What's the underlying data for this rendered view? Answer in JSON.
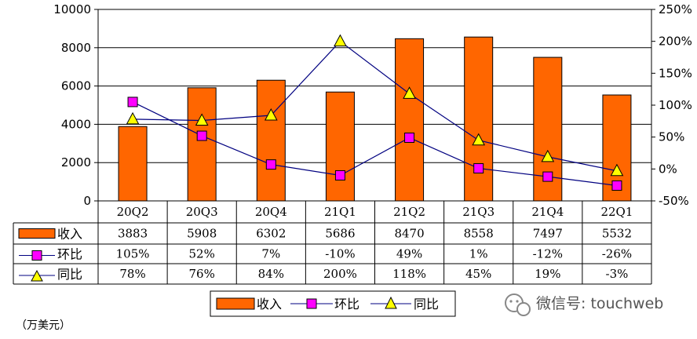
{
  "chart_data": {
    "type": "bar",
    "categories": [
      "20Q2",
      "20Q3",
      "20Q4",
      "21Q1",
      "21Q2",
      "21Q3",
      "21Q4",
      "22Q1"
    ],
    "series": [
      {
        "name": "收入",
        "type": "bar",
        "axis": "left",
        "color": "#FF6600",
        "values": [
          3883,
          5908,
          6302,
          5686,
          8470,
          8558,
          7497,
          5532
        ],
        "labels": [
          "3883",
          "5908",
          "6302",
          "5686",
          "8470",
          "8558",
          "7497",
          "5532"
        ]
      },
      {
        "name": "环比",
        "type": "line",
        "axis": "right",
        "marker": "square",
        "color": "#FF00FF",
        "line_color": "#000080",
        "values": [
          105,
          52,
          7,
          -10,
          49,
          1,
          -12,
          -26
        ],
        "labels": [
          "105%",
          "52%",
          "7%",
          "-10%",
          "49%",
          "1%",
          "-12%",
          "-26%"
        ]
      },
      {
        "name": "同比",
        "type": "line",
        "axis": "right",
        "marker": "triangle",
        "color": "#FFFF00",
        "line_color": "#000080",
        "values": [
          78,
          76,
          84,
          200,
          118,
          45,
          19,
          -3
        ],
        "labels": [
          "78%",
          "76%",
          "84%",
          "200%",
          "118%",
          "45%",
          "19%",
          "-3%"
        ]
      }
    ],
    "y_left": {
      "min": 0,
      "max": 10000,
      "ticks": [
        "10000",
        "8000",
        "6000",
        "4000",
        "2000",
        "0"
      ]
    },
    "y_right": {
      "min": -50,
      "max": 250,
      "ticks": [
        "250%",
        "200%",
        "150%",
        "100%",
        "50%",
        "0%",
        "-50%"
      ]
    },
    "grid": true,
    "legend": {
      "position": "bottom",
      "items": [
        "收入",
        "环比",
        "同比"
      ]
    },
    "unit_note": "（万美元）"
  },
  "watermark": {
    "text": "微信号: touchweb"
  }
}
